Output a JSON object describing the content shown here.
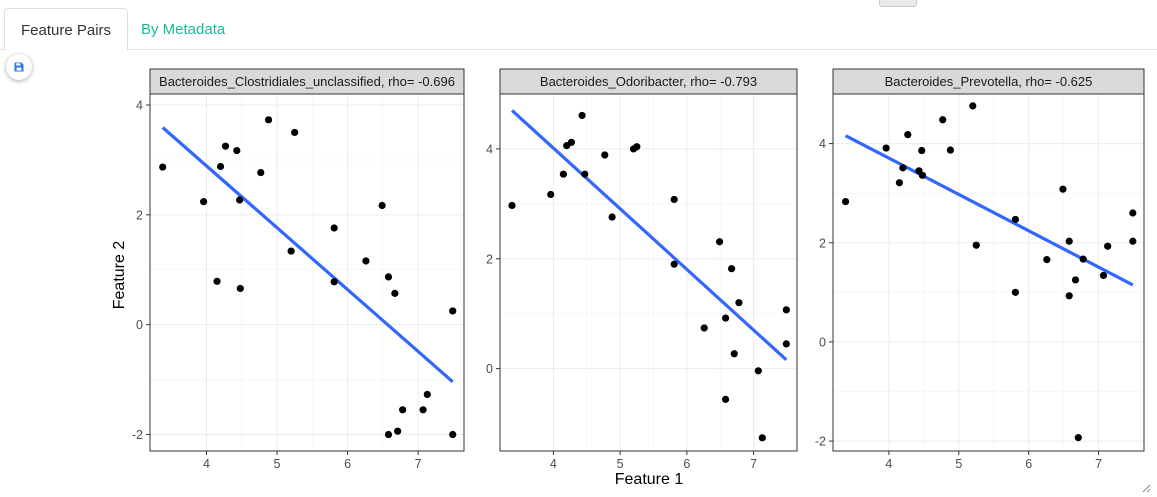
{
  "tabs": [
    {
      "label": "Feature Pairs",
      "active": true
    },
    {
      "label": "By Metadata",
      "active": false
    }
  ],
  "icons": {
    "save": "save-icon",
    "resize": "resize-grip-icon"
  },
  "colors": {
    "accent": "#18bc9c",
    "save_icon": "#2c7be5",
    "regression_line": "#3366ff",
    "point": "#000000",
    "strip_fill": "#d9d9d9"
  },
  "plot_labels": {
    "xlabel": "Feature 1",
    "ylabel": "Feature 2"
  },
  "chart_data": [
    {
      "type": "scatter",
      "title": "Bacteroides_Clostridiales_unclassified, rho= -0.696",
      "xlabel": "Feature 1",
      "ylabel": "Feature 2",
      "xlim": [
        3.2,
        7.65
      ],
      "ylim": [
        -2.3,
        4.2
      ],
      "xticks": [
        4,
        5,
        6,
        7
      ],
      "yticks": [
        -2,
        0,
        2,
        4
      ],
      "grid": true,
      "points": [
        [
          3.38,
          2.87
        ],
        [
          3.96,
          2.24
        ],
        [
          4.15,
          0.79
        ],
        [
          4.2,
          2.88
        ],
        [
          4.27,
          3.25
        ],
        [
          4.43,
          3.17
        ],
        [
          4.47,
          2.27
        ],
        [
          4.48,
          0.66
        ],
        [
          4.77,
          2.77
        ],
        [
          4.88,
          3.73
        ],
        [
          5.2,
          1.34
        ],
        [
          5.25,
          3.5
        ],
        [
          5.81,
          1.76
        ],
        [
          5.81,
          0.78
        ],
        [
          6.26,
          1.16
        ],
        [
          6.49,
          2.17
        ],
        [
          6.58,
          0.87
        ],
        [
          6.58,
          -2.0
        ],
        [
          6.67,
          0.57
        ],
        [
          6.71,
          -1.94
        ],
        [
          6.78,
          -1.55
        ],
        [
          7.07,
          -1.55
        ],
        [
          7.13,
          -1.27
        ],
        [
          7.49,
          0.25
        ],
        [
          7.49,
          -2.0
        ]
      ],
      "fit_line": [
        [
          3.38,
          3.59
        ],
        [
          7.49,
          -1.04
        ]
      ]
    },
    {
      "type": "scatter",
      "title": "Bacteroides_Odoribacter, rho= -0.793",
      "xlabel": "Feature 1",
      "ylabel": "Feature 2",
      "xlim": [
        3.2,
        7.65
      ],
      "ylim": [
        -1.5,
        5.0
      ],
      "xticks": [
        4,
        5,
        6,
        7
      ],
      "yticks": [
        0,
        2,
        4
      ],
      "grid": true,
      "points": [
        [
          3.38,
          2.97
        ],
        [
          3.96,
          3.17
        ],
        [
          4.15,
          3.54
        ],
        [
          4.2,
          4.06
        ],
        [
          4.27,
          4.12
        ],
        [
          4.43,
          4.61
        ],
        [
          4.47,
          3.54
        ],
        [
          4.77,
          3.89
        ],
        [
          4.88,
          2.76
        ],
        [
          5.2,
          4.0
        ],
        [
          5.25,
          4.04
        ],
        [
          5.81,
          3.08
        ],
        [
          5.81,
          1.9
        ],
        [
          6.26,
          0.74
        ],
        [
          6.49,
          2.31
        ],
        [
          6.58,
          0.92
        ],
        [
          6.58,
          -0.56
        ],
        [
          6.67,
          1.82
        ],
        [
          6.71,
          0.27
        ],
        [
          6.78,
          1.2
        ],
        [
          7.07,
          -0.04
        ],
        [
          7.13,
          -1.26
        ],
        [
          7.49,
          1.07
        ],
        [
          7.49,
          0.45
        ]
      ],
      "fit_line": [
        [
          3.38,
          4.7
        ],
        [
          7.49,
          0.16
        ]
      ]
    },
    {
      "type": "scatter",
      "title": "Bacteroides_Prevotella, rho= -0.625",
      "xlabel": "Feature 1",
      "ylabel": "Feature 2",
      "xlim": [
        3.2,
        7.65
      ],
      "ylim": [
        -2.2,
        5.0
      ],
      "xticks": [
        4,
        5,
        6,
        7
      ],
      "yticks": [
        -2,
        0,
        2,
        4
      ],
      "grid": true,
      "points": [
        [
          3.38,
          2.83
        ],
        [
          3.96,
          3.91
        ],
        [
          4.15,
          3.21
        ],
        [
          4.2,
          3.51
        ],
        [
          4.27,
          4.18
        ],
        [
          4.43,
          3.45
        ],
        [
          4.47,
          3.86
        ],
        [
          4.48,
          3.36
        ],
        [
          4.77,
          4.48
        ],
        [
          4.88,
          3.87
        ],
        [
          5.2,
          4.76
        ],
        [
          5.25,
          1.95
        ],
        [
          5.81,
          2.47
        ],
        [
          5.81,
          1.0
        ],
        [
          6.26,
          1.66
        ],
        [
          6.49,
          3.08
        ],
        [
          6.58,
          2.03
        ],
        [
          6.58,
          0.93
        ],
        [
          6.67,
          1.25
        ],
        [
          6.71,
          -1.93
        ],
        [
          6.78,
          1.67
        ],
        [
          7.07,
          1.34
        ],
        [
          7.13,
          1.93
        ],
        [
          7.49,
          2.6
        ],
        [
          7.49,
          2.03
        ]
      ],
      "fit_line": [
        [
          3.38,
          4.16
        ],
        [
          7.49,
          1.15
        ]
      ]
    }
  ]
}
